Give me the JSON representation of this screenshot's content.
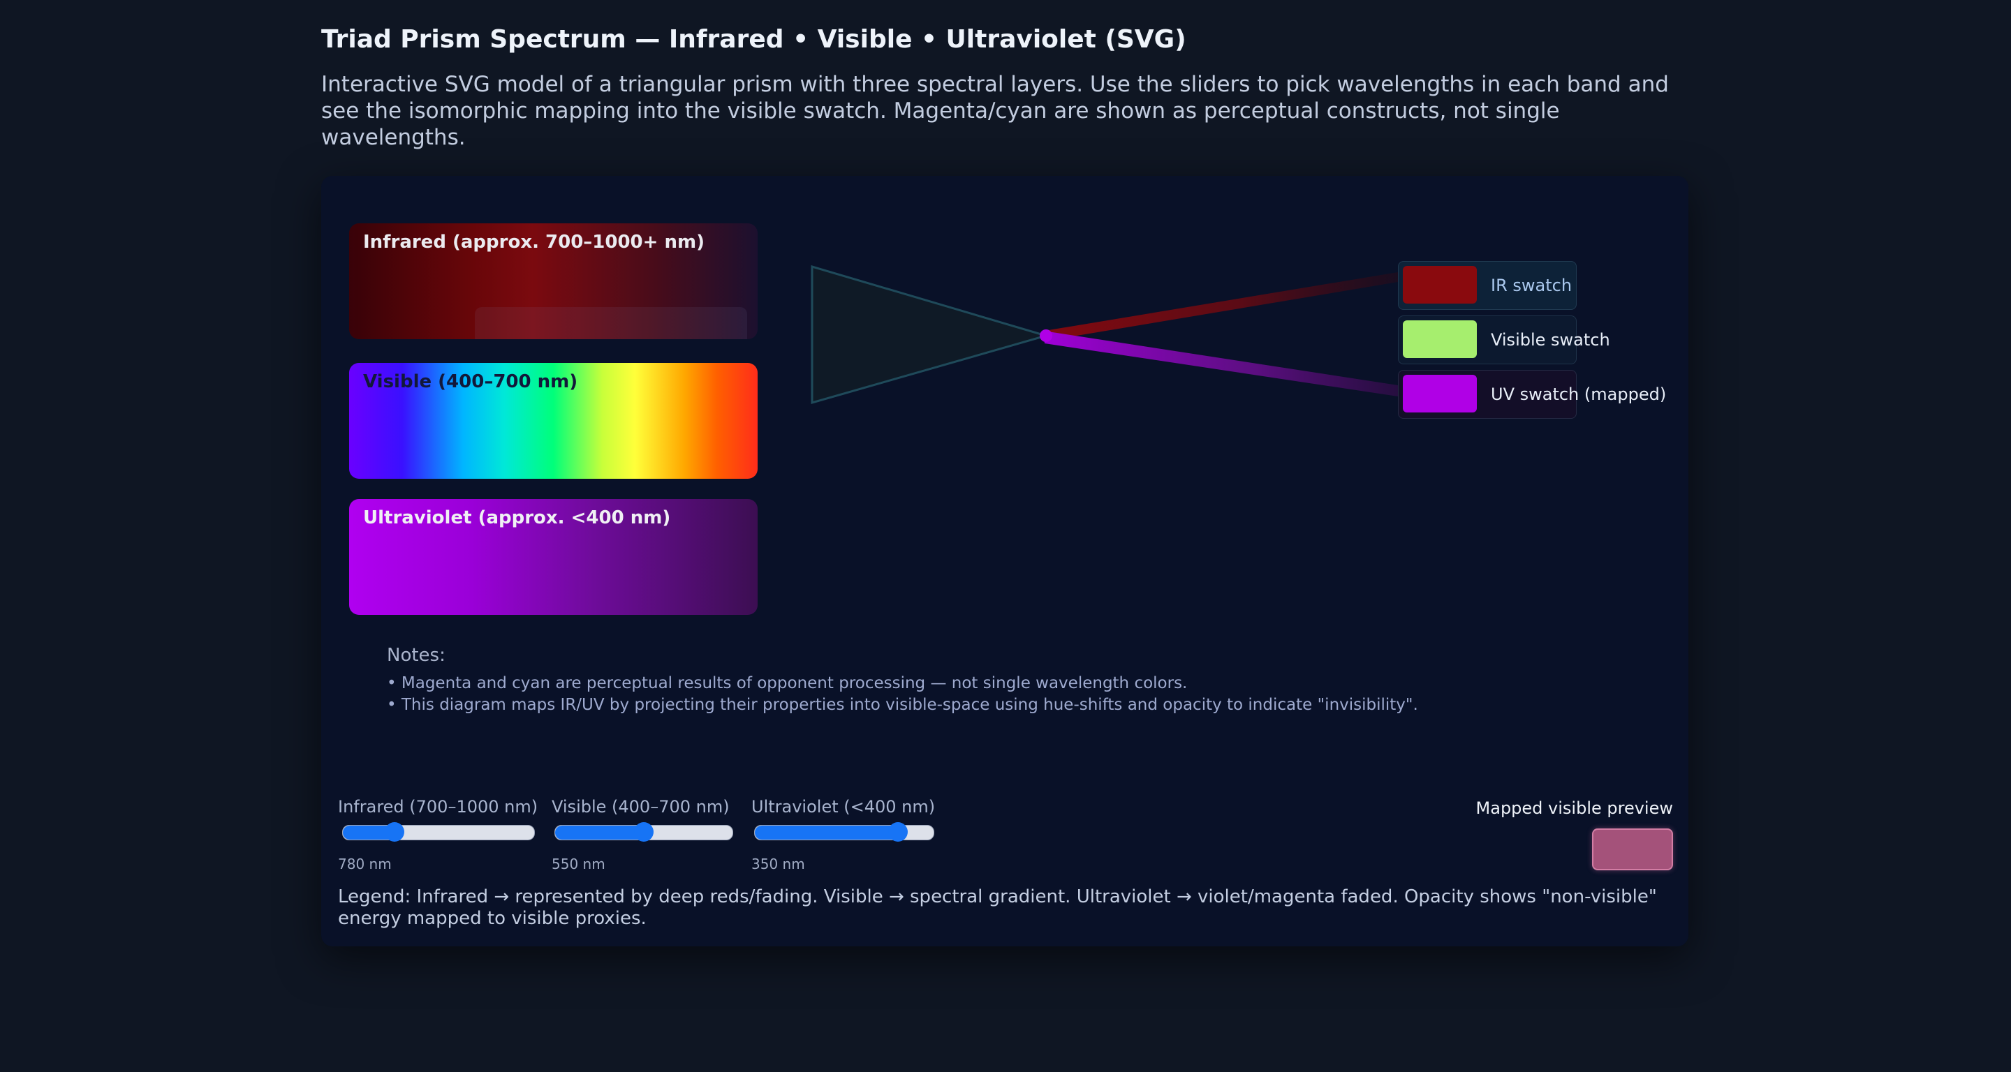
{
  "header": {
    "title": "Triad Prism Spectrum — Infrared • Visible • Ultraviolet (SVG)",
    "description": "Interactive SVG model of a triangular prism with three spectral layers. Use the sliders to pick wavelengths in each band and see the isomorphic mapping into the visible swatch. Magenta/cyan are shown as perceptual constructs, not single wavelengths."
  },
  "bands": {
    "infrared_label": "Infrared (approx. 700–1000+ nm)",
    "visible_label": "Visible (400–700 nm)",
    "ultraviolet_label": "Ultraviolet (approx. <400 nm)"
  },
  "swatches": [
    {
      "label": "IR swatch",
      "color": "#8a0a0e"
    },
    {
      "label": "Visible swatch",
      "color": "#a6ee6e"
    },
    {
      "label": "UV swatch (mapped)",
      "color": "#b000e6"
    }
  ],
  "notes": {
    "title": "Notes:",
    "items": [
      "• Magenta and cyan are perceptual results of opponent processing — not single wavelength colors.",
      "• This diagram maps IR/UV by projecting their properties into visible-space using hue-shifts and opacity to indicate \"invisibility\"."
    ]
  },
  "sliders": [
    {
      "label": "Infrared (700–1000 nm)",
      "value": "780 nm",
      "fraction": 0.27
    },
    {
      "label": "Visible (400–700 nm)",
      "value": "550 nm",
      "fraction": 0.5
    },
    {
      "label": "Ultraviolet (<400 nm)",
      "value": "350 nm",
      "fraction": 0.8
    }
  ],
  "preview": {
    "label": "Mapped visible preview",
    "color": "#a4527a"
  },
  "legend": "Legend: Infrared → represented by deep reds/fading. Visible → spectral gradient. Ultraviolet → violet/magenta faded. Opacity shows \"non-visible\" energy mapped to visible proxies.",
  "colors": {
    "background": "#0f1623",
    "panel": "#091128",
    "accent": "#1774f5",
    "ir_beam": "#8a0a0e",
    "uv_beam": "#b000e6"
  }
}
